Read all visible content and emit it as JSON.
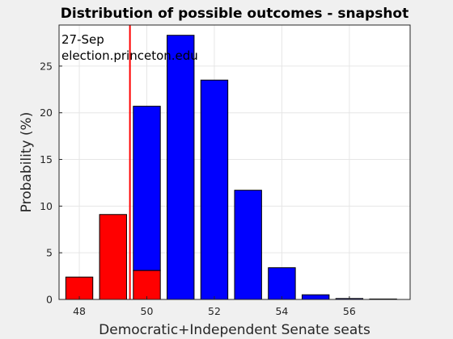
{
  "chart_data": {
    "type": "bar",
    "title": "Distribution of possible outcomes - snapshot",
    "xlabel": "Democratic+Independent Senate seats",
    "ylabel": "Probability (%)",
    "annotations": [
      "27-Sep",
      "election.princeton.edu"
    ],
    "x": [
      48,
      49,
      50,
      51,
      52,
      53,
      54,
      55,
      56,
      57
    ],
    "values": [
      2.4,
      9.1,
      20.7,
      28.3,
      23.5,
      11.7,
      3.4,
      0.5,
      0.1,
      0.05
    ],
    "red_portion": [
      2.4,
      9.1,
      3.1,
      0,
      0,
      0,
      0,
      0,
      0,
      0
    ],
    "threshold_x": 49.5,
    "xlim": [
      47.4,
      57.8
    ],
    "ylim": [
      0,
      29.4
    ],
    "xticks": [
      48,
      50,
      52,
      54,
      56
    ],
    "yticks": [
      0,
      5,
      10,
      15,
      20,
      25
    ],
    "grid": true,
    "colors": {
      "dem": "#0000ff",
      "rep": "#ff0000",
      "threshold": "#ff0000"
    }
  }
}
